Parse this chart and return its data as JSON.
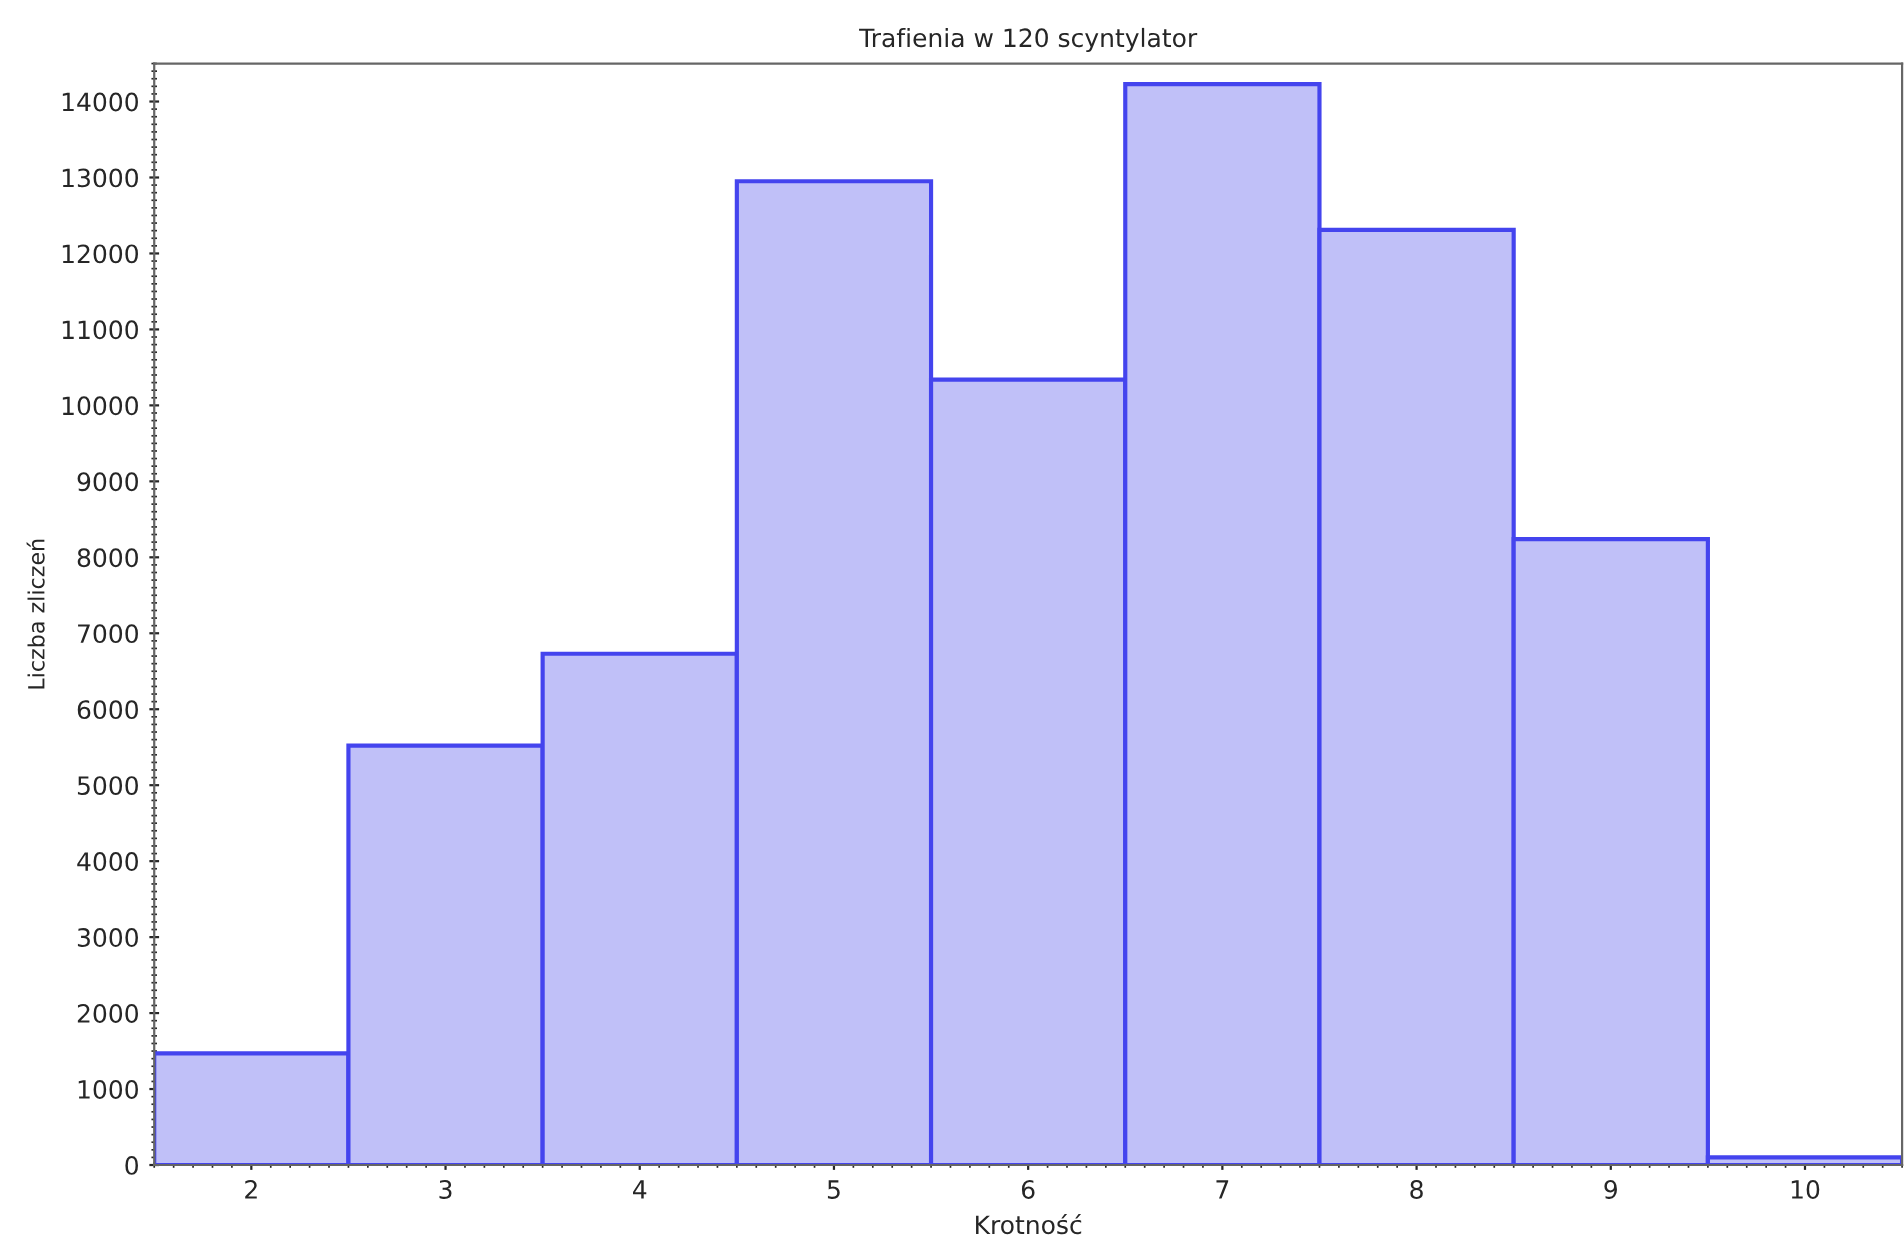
{
  "chart_data": {
    "type": "histogram",
    "title": "Trafienia w 120 scyntylator",
    "xlabel": "Krotność",
    "ylabel": "Liczba zliczeń",
    "bins": [
      1.5,
      2.5,
      3.5,
      4.5,
      5.5,
      6.5,
      7.5,
      8.5,
      9.5,
      10.5
    ],
    "values": [
      1470,
      5520,
      6730,
      12950,
      10340,
      14230,
      12310,
      8240,
      100
    ],
    "color": "#c0c0f8",
    "xlim": [
      1.5,
      10.5
    ],
    "xticks": [
      2,
      3,
      4,
      5,
      6,
      7,
      8,
      9,
      10
    ],
    "ylim": [
      0,
      14500
    ],
    "yticks": [
      0,
      1000,
      2000,
      3000,
      4000,
      5000,
      6000,
      7000,
      8000,
      9000,
      10000,
      11000,
      12000,
      13000,
      14000
    ],
    "grid": false
  }
}
